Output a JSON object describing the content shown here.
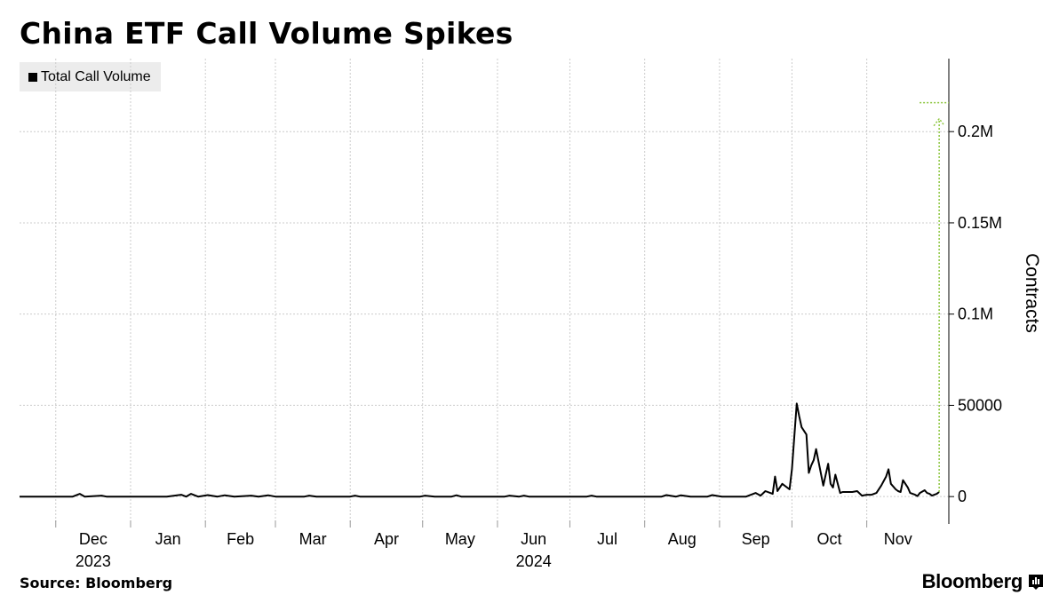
{
  "title": "China ETF Call Volume Spikes",
  "source": "Source: Bloomberg",
  "brand": "Bloomberg",
  "colors": {
    "line": "#000000",
    "grid": "#cccccc",
    "annotation": "#8dc63f",
    "legend_bg": "#ececec"
  },
  "chart_data": {
    "type": "line",
    "title": "China ETF Call Volume Spikes",
    "xlabel": "",
    "ylabel": "Contracts",
    "ylim": [
      -15000,
      240000
    ],
    "grid": true,
    "legend_position": "top-left",
    "legend": [
      "Total Call Volume"
    ],
    "yticks": [
      {
        "value": 0,
        "label": "0"
      },
      {
        "value": 50000,
        "label": "50000"
      },
      {
        "value": 100000,
        "label": "0.1M"
      },
      {
        "value": 150000,
        "label": "0.15M"
      },
      {
        "value": 200000,
        "label": "0.2M"
      }
    ],
    "xticks": [
      {
        "date": "2023-12-01",
        "label": "Dec",
        "year": "2023"
      },
      {
        "date": "2024-01-01",
        "label": "Jan"
      },
      {
        "date": "2024-02-01",
        "label": "Feb"
      },
      {
        "date": "2024-03-01",
        "label": "Mar"
      },
      {
        "date": "2024-04-01",
        "label": "Apr"
      },
      {
        "date": "2024-05-01",
        "label": "May"
      },
      {
        "date": "2024-06-01",
        "label": "Jun",
        "year": "2024"
      },
      {
        "date": "2024-07-01",
        "label": "Jul"
      },
      {
        "date": "2024-08-01",
        "label": "Aug"
      },
      {
        "date": "2024-09-01",
        "label": "Sep"
      },
      {
        "date": "2024-10-01",
        "label": "Oct"
      },
      {
        "date": "2024-11-01",
        "label": "Nov"
      }
    ],
    "x_range": [
      "2023-11-16",
      "2024-12-05"
    ],
    "series": [
      {
        "name": "Total Call Volume",
        "points": [
          [
            "2023-11-16",
            0
          ],
          [
            "2023-11-27",
            0
          ],
          [
            "2023-12-08",
            0
          ],
          [
            "2023-12-11",
            1500
          ],
          [
            "2023-12-13",
            0
          ],
          [
            "2023-12-20",
            500
          ],
          [
            "2023-12-22",
            0
          ],
          [
            "2024-01-16",
            0
          ],
          [
            "2024-01-22",
            1000
          ],
          [
            "2024-01-24",
            0
          ],
          [
            "2024-01-26",
            1500
          ],
          [
            "2024-01-29",
            0
          ],
          [
            "2024-02-02",
            800
          ],
          [
            "2024-02-06",
            0
          ],
          [
            "2024-02-09",
            700
          ],
          [
            "2024-02-13",
            0
          ],
          [
            "2024-02-20",
            500
          ],
          [
            "2024-02-23",
            0
          ],
          [
            "2024-02-27",
            700
          ],
          [
            "2024-03-01",
            0
          ],
          [
            "2024-03-13",
            0
          ],
          [
            "2024-03-15",
            500
          ],
          [
            "2024-03-18",
            0
          ],
          [
            "2024-04-01",
            0
          ],
          [
            "2024-04-03",
            500
          ],
          [
            "2024-04-05",
            0
          ],
          [
            "2024-04-30",
            0
          ],
          [
            "2024-05-02",
            500
          ],
          [
            "2024-05-06",
            0
          ],
          [
            "2024-05-13",
            0
          ],
          [
            "2024-05-15",
            700
          ],
          [
            "2024-05-17",
            0
          ],
          [
            "2024-06-04",
            0
          ],
          [
            "2024-06-06",
            500
          ],
          [
            "2024-06-10",
            0
          ],
          [
            "2024-06-12",
            500
          ],
          [
            "2024-06-14",
            0
          ],
          [
            "2024-07-08",
            0
          ],
          [
            "2024-07-10",
            500
          ],
          [
            "2024-07-12",
            0
          ],
          [
            "2024-08-08",
            0
          ],
          [
            "2024-08-10",
            800
          ],
          [
            "2024-08-14",
            0
          ],
          [
            "2024-08-16",
            700
          ],
          [
            "2024-08-20",
            0
          ],
          [
            "2024-08-27",
            0
          ],
          [
            "2024-08-29",
            800
          ],
          [
            "2024-09-02",
            0
          ],
          [
            "2024-09-12",
            0
          ],
          [
            "2024-09-16",
            2000
          ],
          [
            "2024-09-18",
            500
          ],
          [
            "2024-09-20",
            3000
          ],
          [
            "2024-09-23",
            1500
          ],
          [
            "2024-09-24",
            11000
          ],
          [
            "2024-09-25",
            3000
          ],
          [
            "2024-09-26",
            5000
          ],
          [
            "2024-09-27",
            7000
          ],
          [
            "2024-09-30",
            4000
          ],
          [
            "2024-10-01",
            15000
          ],
          [
            "2024-10-03",
            51000
          ],
          [
            "2024-10-04",
            44000
          ],
          [
            "2024-10-05",
            38000
          ],
          [
            "2024-10-07",
            34000
          ],
          [
            "2024-10-08",
            13000
          ],
          [
            "2024-10-09",
            17000
          ],
          [
            "2024-10-10",
            20000
          ],
          [
            "2024-10-11",
            26000
          ],
          [
            "2024-10-14",
            6000
          ],
          [
            "2024-10-15",
            12000
          ],
          [
            "2024-10-16",
            18000
          ],
          [
            "2024-10-17",
            7000
          ],
          [
            "2024-10-18",
            5000
          ],
          [
            "2024-10-19",
            12000
          ],
          [
            "2024-10-21",
            2000
          ],
          [
            "2024-10-22",
            2500
          ],
          [
            "2024-10-24",
            2500
          ],
          [
            "2024-10-26",
            2500
          ],
          [
            "2024-10-28",
            3000
          ],
          [
            "2024-10-30",
            500
          ],
          [
            "2024-11-01",
            1000
          ],
          [
            "2024-11-03",
            1000
          ],
          [
            "2024-11-05",
            2000
          ],
          [
            "2024-11-07",
            6000
          ],
          [
            "2024-11-09",
            11000
          ],
          [
            "2024-11-10",
            15000
          ],
          [
            "2024-11-11",
            7000
          ],
          [
            "2024-11-13",
            4000
          ],
          [
            "2024-11-14",
            3000
          ],
          [
            "2024-11-15",
            2500
          ],
          [
            "2024-11-16",
            9000
          ],
          [
            "2024-11-18",
            5000
          ],
          [
            "2024-11-19",
            2000
          ],
          [
            "2024-11-21",
            1000
          ],
          [
            "2024-11-22",
            300
          ],
          [
            "2024-11-23",
            2000
          ],
          [
            "2024-11-25",
            3500
          ],
          [
            "2024-11-26",
            2000
          ],
          [
            "2024-11-27",
            1500
          ],
          [
            "2024-11-28",
            500
          ],
          [
            "2024-11-29",
            1000
          ],
          [
            "2024-11-30",
            1500
          ],
          [
            "2024-12-01",
            2500
          ]
        ]
      }
    ],
    "annotation": {
      "date": "2024-12-01",
      "from": 2500,
      "to": 210000,
      "type": "arrow"
    }
  }
}
